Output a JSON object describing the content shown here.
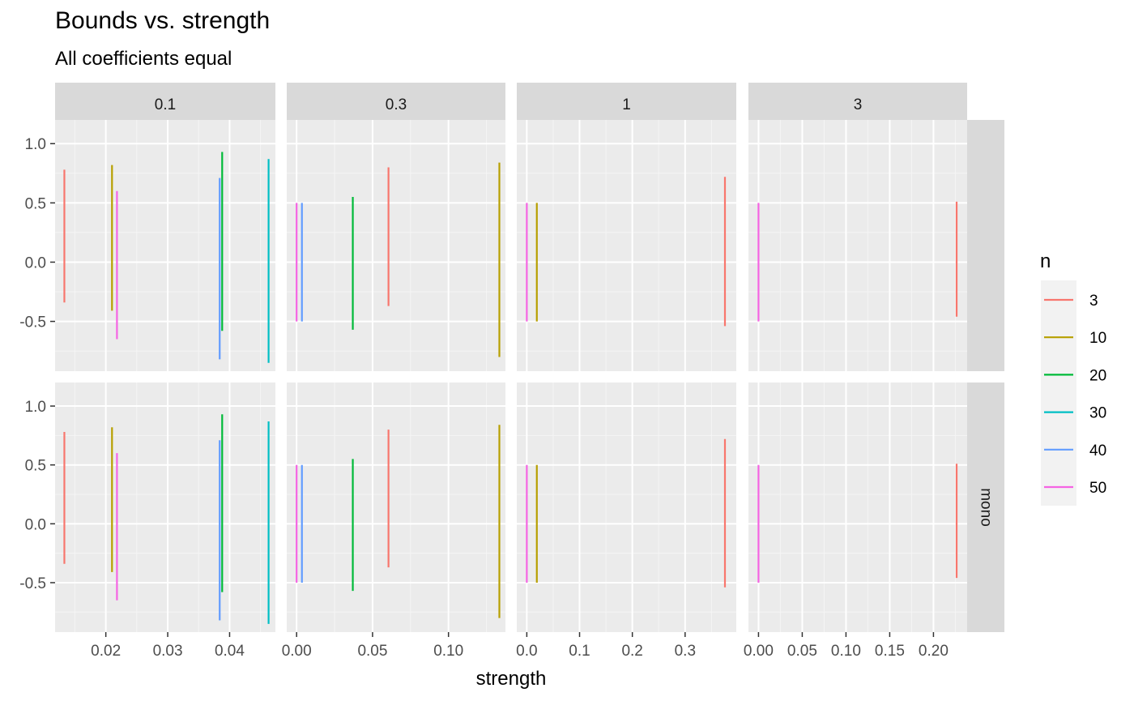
{
  "chart_data": {
    "type": "line",
    "title": "Bounds vs. strength",
    "subtitle": "All coefficients equal",
    "xlabel": "strength",
    "ylabel": "",
    "ylim": [
      -0.92,
      1.2
    ],
    "y_ticks": [
      1.0,
      0.5,
      0.0,
      -0.5
    ],
    "y_tick_labels": [
      "1.0",
      "0.5",
      "0.0",
      "-0.5"
    ],
    "grid": true,
    "legend": {
      "title": "n",
      "placement": "right",
      "entries": [
        {
          "label": "3",
          "color": "#F8766D"
        },
        {
          "label": "10",
          "color": "#B79F00"
        },
        {
          "label": "20",
          "color": "#00BA38"
        },
        {
          "label": "30",
          "color": "#00BFC4"
        },
        {
          "label": "40",
          "color": "#619CFF"
        },
        {
          "label": "50",
          "color": "#F564E3"
        }
      ]
    },
    "facet_columns": [
      {
        "label": "0.1",
        "xlim": [
          0.0118,
          0.0474
        ],
        "x_ticks": [
          0.02,
          0.03,
          0.04
        ],
        "x_tick_labels": [
          "0.02",
          "0.03",
          "0.04"
        ],
        "segments": [
          {
            "n": "3",
            "x": 0.0133,
            "ymin": -0.34,
            "ymax": 0.78
          },
          {
            "n": "10",
            "x": 0.021,
            "ymin": -0.41,
            "ymax": 0.82
          },
          {
            "n": "50",
            "x": 0.0218,
            "ymin": -0.65,
            "ymax": 0.6
          },
          {
            "n": "40",
            "x": 0.0384,
            "ymin": -0.82,
            "ymax": 0.71
          },
          {
            "n": "20",
            "x": 0.0388,
            "ymin": -0.58,
            "ymax": 0.93
          },
          {
            "n": "30",
            "x": 0.0463,
            "ymin": -0.85,
            "ymax": 0.87
          }
        ]
      },
      {
        "label": "0.3",
        "xlim": [
          -0.0065,
          0.1375
        ],
        "x_ticks": [
          0.0,
          0.05,
          0.1
        ],
        "x_tick_labels": [
          "0.00",
          "0.05",
          "0.10"
        ],
        "segments": [
          {
            "n": "50",
            "x": 0.0,
            "ymin": -0.5,
            "ymax": 0.5
          },
          {
            "n": "40",
            "x": 0.0035,
            "ymin": -0.5,
            "ymax": 0.5
          },
          {
            "n": "20",
            "x": 0.037,
            "ymin": -0.57,
            "ymax": 0.55
          },
          {
            "n": "3",
            "x": 0.0605,
            "ymin": -0.37,
            "ymax": 0.8
          },
          {
            "n": "10",
            "x": 0.1335,
            "ymin": -0.8,
            "ymax": 0.84
          }
        ]
      },
      {
        "label": "1",
        "xlim": [
          -0.019,
          0.397
        ],
        "x_ticks": [
          0.0,
          0.1,
          0.2,
          0.3
        ],
        "x_tick_labels": [
          "0.0",
          "0.1",
          "0.2",
          "0.3"
        ],
        "segments": [
          {
            "n": "50",
            "x": 0.0,
            "ymin": -0.5,
            "ymax": 0.5
          },
          {
            "n": "10",
            "x": 0.019,
            "ymin": -0.5,
            "ymax": 0.5
          },
          {
            "n": "3",
            "x": 0.3755,
            "ymin": -0.54,
            "ymax": 0.72
          }
        ]
      },
      {
        "label": "3",
        "xlim": [
          -0.0115,
          0.2385
        ],
        "x_ticks": [
          0.0,
          0.05,
          0.1,
          0.15,
          0.2
        ],
        "x_tick_labels": [
          "0.00",
          "0.05",
          "0.10",
          "0.15",
          "0.20"
        ],
        "segments": [
          {
            "n": "50",
            "x": 0.0,
            "ymin": -0.5,
            "ymax": 0.5
          },
          {
            "n": "3",
            "x": 0.2265,
            "ymin": -0.46,
            "ymax": 0.51
          }
        ]
      }
    ],
    "facet_rows": [
      {
        "label": ""
      },
      {
        "label": "mono"
      }
    ]
  }
}
